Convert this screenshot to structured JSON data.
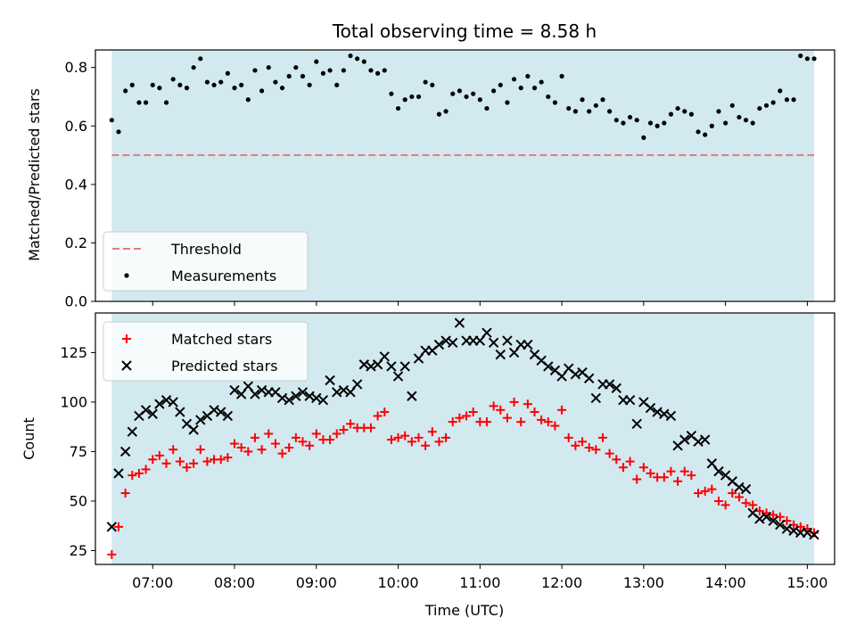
{
  "chart_data": [
    {
      "type": "scatter",
      "title": "Total observing time = 8.58 h",
      "ylabel": "Matched/Predicted stars",
      "xlabel": "",
      "xlim": [
        "06:18",
        "15:20"
      ],
      "ylim": [
        0,
        0.86
      ],
      "yticks": [
        "0.0",
        "0.2",
        "0.4",
        "0.6",
        "0.8"
      ],
      "shaded_span": [
        "06:30",
        "15:05"
      ],
      "shade_color": "#d3e9f0",
      "threshold": {
        "name": "Threshold",
        "value": 0.5,
        "color": "#e87a7a",
        "style": "dashed"
      },
      "series": [
        {
          "name": "Measurements",
          "color": "#000000",
          "marker": "dot",
          "x": [
            "06:30",
            "06:35",
            "06:40",
            "06:45",
            "06:50",
            "06:55",
            "07:00",
            "07:05",
            "07:10",
            "07:15",
            "07:20",
            "07:25",
            "07:30",
            "07:35",
            "07:40",
            "07:45",
            "07:50",
            "07:55",
            "08:00",
            "08:05",
            "08:10",
            "08:15",
            "08:20",
            "08:25",
            "08:30",
            "08:35",
            "08:40",
            "08:45",
            "08:50",
            "08:55",
            "09:00",
            "09:05",
            "09:10",
            "09:15",
            "09:20",
            "09:25",
            "09:30",
            "09:35",
            "09:40",
            "09:45",
            "09:50",
            "09:55",
            "10:00",
            "10:05",
            "10:10",
            "10:15",
            "10:20",
            "10:25",
            "10:30",
            "10:35",
            "10:40",
            "10:45",
            "10:50",
            "10:55",
            "11:00",
            "11:05",
            "11:10",
            "11:15",
            "11:20",
            "11:25",
            "11:30",
            "11:35",
            "11:40",
            "11:45",
            "11:50",
            "11:55",
            "12:00",
            "12:05",
            "12:10",
            "12:15",
            "12:20",
            "12:25",
            "12:30",
            "12:35",
            "12:40",
            "12:45",
            "12:50",
            "12:55",
            "13:00",
            "13:05",
            "13:10",
            "13:15",
            "13:20",
            "13:25",
            "13:30",
            "13:35",
            "13:40",
            "13:45",
            "13:50",
            "13:55",
            "14:00",
            "14:05",
            "14:10",
            "14:15",
            "14:20",
            "14:25",
            "14:30",
            "14:35",
            "14:40",
            "14:45",
            "14:50",
            "14:55",
            "15:00",
            "15:05"
          ],
          "y": [
            0.62,
            0.58,
            0.72,
            0.74,
            0.68,
            0.68,
            0.74,
            0.73,
            0.68,
            0.76,
            0.74,
            0.73,
            0.8,
            0.83,
            0.75,
            0.74,
            0.75,
            0.78,
            0.73,
            0.74,
            0.69,
            0.79,
            0.72,
            0.8,
            0.75,
            0.73,
            0.77,
            0.8,
            0.77,
            0.74,
            0.82,
            0.78,
            0.79,
            0.74,
            0.79,
            0.84,
            0.83,
            0.82,
            0.79,
            0.78,
            0.79,
            0.71,
            0.66,
            0.69,
            0.7,
            0.7,
            0.75,
            0.74,
            0.64,
            0.65,
            0.71,
            0.72,
            0.7,
            0.71,
            0.69,
            0.66,
            0.72,
            0.74,
            0.68,
            0.76,
            0.73,
            0.77,
            0.73,
            0.75,
            0.7,
            0.68,
            0.77,
            0.66,
            0.65,
            0.69,
            0.65,
            0.67,
            0.69,
            0.65,
            0.62,
            0.61,
            0.63,
            0.62,
            0.56,
            0.61,
            0.6,
            0.61,
            0.64,
            0.66,
            0.65,
            0.64,
            0.58,
            0.57,
            0.6,
            0.65,
            0.61,
            0.67,
            0.63,
            0.62,
            0.61,
            0.66,
            0.67,
            0.68,
            0.72,
            0.69,
            0.69,
            0.84,
            0.83,
            0.83
          ]
        }
      ],
      "legend": {
        "entries": [
          "Threshold",
          "Measurements"
        ],
        "placement": "lower-left"
      }
    },
    {
      "type": "scatter",
      "title": "",
      "xlabel": "Time (UTC)",
      "ylabel": "Count",
      "xlim": [
        "06:18",
        "15:20"
      ],
      "ylim": [
        18,
        145
      ],
      "xticks": [
        "07:00",
        "08:00",
        "09:00",
        "10:00",
        "11:00",
        "12:00",
        "13:00",
        "14:00",
        "15:00"
      ],
      "yticks": [
        25,
        50,
        75,
        100,
        125
      ],
      "shaded_span": [
        "06:30",
        "15:05"
      ],
      "shade_color": "#d3e9f0",
      "series": [
        {
          "name": "Matched stars",
          "color": "#ff0000",
          "marker": "plus",
          "x": [
            "06:30",
            "06:35",
            "06:40",
            "06:45",
            "06:50",
            "06:55",
            "07:00",
            "07:05",
            "07:10",
            "07:15",
            "07:20",
            "07:25",
            "07:30",
            "07:35",
            "07:40",
            "07:45",
            "07:50",
            "07:55",
            "08:00",
            "08:05",
            "08:10",
            "08:15",
            "08:20",
            "08:25",
            "08:30",
            "08:35",
            "08:40",
            "08:45",
            "08:50",
            "08:55",
            "09:00",
            "09:05",
            "09:10",
            "09:15",
            "09:20",
            "09:25",
            "09:30",
            "09:35",
            "09:40",
            "09:45",
            "09:50",
            "09:55",
            "10:00",
            "10:05",
            "10:10",
            "10:15",
            "10:20",
            "10:25",
            "10:30",
            "10:35",
            "10:40",
            "10:45",
            "10:50",
            "10:55",
            "11:00",
            "11:05",
            "11:10",
            "11:15",
            "11:20",
            "11:25",
            "11:30",
            "11:35",
            "11:40",
            "11:45",
            "11:50",
            "11:55",
            "12:00",
            "12:05",
            "12:10",
            "12:15",
            "12:20",
            "12:25",
            "12:30",
            "12:35",
            "12:40",
            "12:45",
            "12:50",
            "12:55",
            "13:00",
            "13:05",
            "13:10",
            "13:15",
            "13:20",
            "13:25",
            "13:30",
            "13:35",
            "13:40",
            "13:45",
            "13:50",
            "13:55",
            "14:00",
            "14:05",
            "14:10",
            "14:15",
            "14:20",
            "14:25",
            "14:30",
            "14:35",
            "14:40",
            "14:45",
            "14:50",
            "14:55",
            "15:00",
            "15:05"
          ],
          "y": [
            23,
            37,
            54,
            63,
            64,
            66,
            71,
            73,
            69,
            76,
            70,
            67,
            69,
            76,
            70,
            71,
            71,
            72,
            79,
            77,
            75,
            82,
            76,
            84,
            79,
            74,
            77,
            82,
            80,
            78,
            84,
            81,
            81,
            84,
            86,
            89,
            87,
            87,
            87,
            93,
            95,
            81,
            82,
            83,
            80,
            82,
            78,
            85,
            80,
            82,
            90,
            92,
            93,
            95,
            90,
            90,
            98,
            96,
            92,
            100,
            90,
            99,
            95,
            91,
            90,
            88,
            96,
            82,
            78,
            80,
            77,
            76,
            82,
            74,
            71,
            67,
            70,
            61,
            67,
            64,
            62,
            62,
            65,
            60,
            65,
            63,
            54,
            55,
            56,
            50,
            48,
            54,
            52,
            49,
            48,
            45,
            44,
            43,
            42,
            40,
            38,
            37,
            36,
            34
          ]
        },
        {
          "name": "Predicted stars",
          "color": "#000000",
          "marker": "x",
          "x": [
            "06:30",
            "06:35",
            "06:40",
            "06:45",
            "06:50",
            "06:55",
            "07:00",
            "07:05",
            "07:10",
            "07:15",
            "07:20",
            "07:25",
            "07:30",
            "07:35",
            "07:40",
            "07:45",
            "07:50",
            "07:55",
            "08:00",
            "08:05",
            "08:10",
            "08:15",
            "08:20",
            "08:25",
            "08:30",
            "08:35",
            "08:40",
            "08:45",
            "08:50",
            "08:55",
            "09:00",
            "09:05",
            "09:10",
            "09:15",
            "09:20",
            "09:25",
            "09:30",
            "09:35",
            "09:40",
            "09:45",
            "09:50",
            "09:55",
            "10:00",
            "10:05",
            "10:10",
            "10:15",
            "10:20",
            "10:25",
            "10:30",
            "10:35",
            "10:40",
            "10:45",
            "10:50",
            "10:55",
            "11:00",
            "11:05",
            "11:10",
            "11:15",
            "11:20",
            "11:25",
            "11:30",
            "11:35",
            "11:40",
            "11:45",
            "11:50",
            "11:55",
            "12:00",
            "12:05",
            "12:10",
            "12:15",
            "12:20",
            "12:25",
            "12:30",
            "12:35",
            "12:40",
            "12:45",
            "12:50",
            "12:55",
            "13:00",
            "13:05",
            "13:10",
            "13:15",
            "13:20",
            "13:25",
            "13:30",
            "13:35",
            "13:40",
            "13:45",
            "13:50",
            "13:55",
            "14:00",
            "14:05",
            "14:10",
            "14:15",
            "14:20",
            "14:25",
            "14:30",
            "14:35",
            "14:40",
            "14:45",
            "14:50",
            "14:55",
            "15:00",
            "15:05"
          ],
          "y": [
            37,
            64,
            75,
            85,
            93,
            96,
            94,
            99,
            101,
            100,
            95,
            89,
            86,
            91,
            93,
            96,
            95,
            93,
            106,
            104,
            108,
            104,
            106,
            105,
            105,
            102,
            101,
            103,
            105,
            103,
            102,
            101,
            111,
            105,
            106,
            105,
            109,
            119,
            118,
            119,
            123,
            118,
            113,
            118,
            103,
            122,
            126,
            126,
            129,
            131,
            130,
            140,
            131,
            131,
            131,
            135,
            130,
            124,
            131,
            125,
            129,
            129,
            124,
            121,
            118,
            116,
            113,
            117,
            114,
            115,
            112,
            102,
            109,
            109,
            107,
            101,
            101,
            89,
            100,
            97,
            95,
            94,
            93,
            78,
            81,
            83,
            80,
            81,
            69,
            65,
            63,
            60,
            57,
            56,
            44,
            41,
            42,
            40,
            38,
            36,
            35,
            34,
            34,
            33
          ]
        }
      ],
      "legend": {
        "entries": [
          "Matched stars",
          "Predicted stars"
        ],
        "placement": "upper-left"
      }
    }
  ]
}
